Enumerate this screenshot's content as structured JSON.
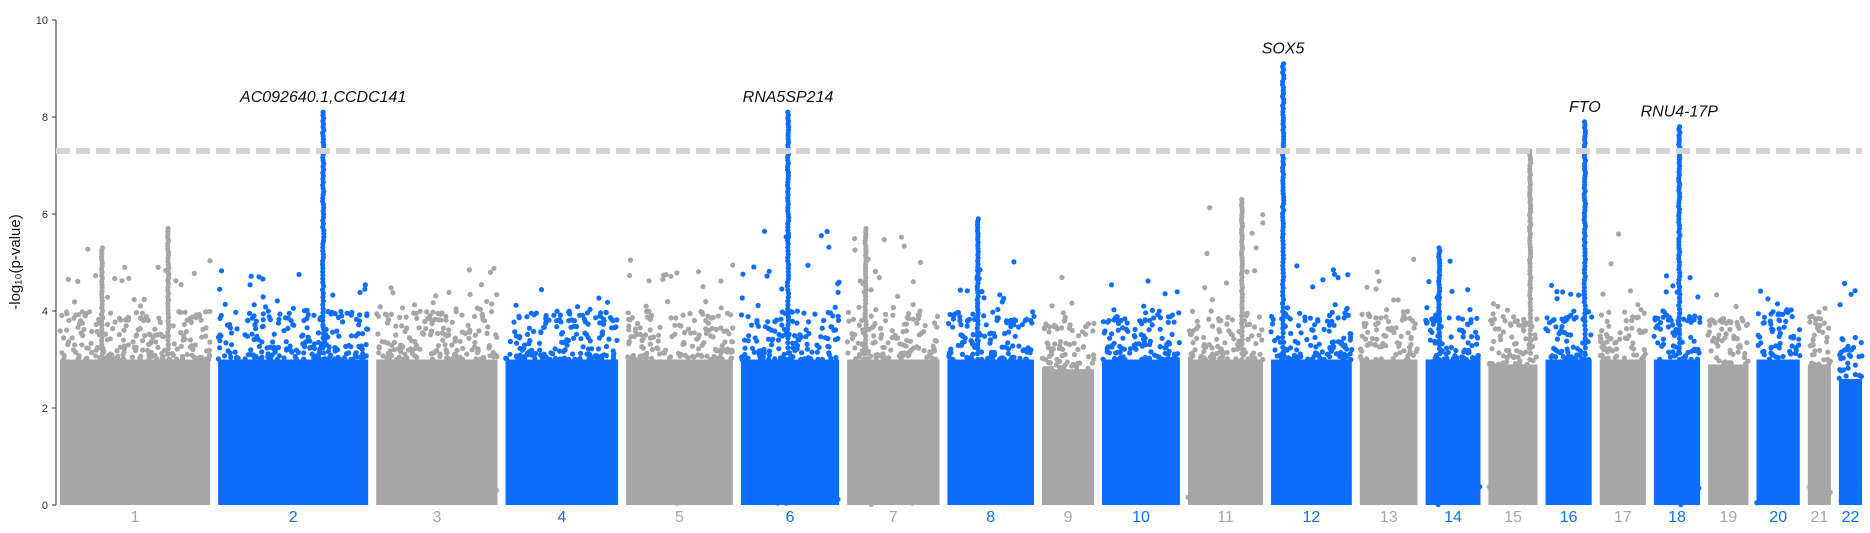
{
  "chart_data": {
    "type": "scatter",
    "ylabel": "-log₁₀(p-value)",
    "ylim": [
      0,
      10
    ],
    "yticks": [
      "0",
      "2",
      "4",
      "6",
      "8",
      "10"
    ],
    "significance_threshold": 7.3,
    "colors": {
      "odd": "#a6a6a6",
      "even": "#0d6efd",
      "threshold": "#d3d3d3"
    },
    "chromosomes": [
      {
        "label": "1",
        "size": 5.2,
        "base_top": 3.0,
        "max": 5.3
      },
      {
        "label": "2",
        "size": 5.2,
        "base_top": 3.0,
        "max": 4.9
      },
      {
        "label": "3",
        "size": 4.2,
        "base_top": 3.0,
        "max": 4.9
      },
      {
        "label": "4",
        "size": 3.9,
        "base_top": 3.0,
        "max": 4.6
      },
      {
        "label": "5",
        "size": 3.7,
        "base_top": 3.0,
        "max": 5.3
      },
      {
        "label": "6",
        "size": 3.4,
        "base_top": 3.0,
        "max": 5.9
      },
      {
        "label": "7",
        "size": 3.2,
        "base_top": 3.0,
        "max": 5.7
      },
      {
        "label": "8",
        "size": 3.0,
        "base_top": 3.0,
        "max": 5.1
      },
      {
        "label": "9",
        "size": 1.8,
        "base_top": 2.8,
        "max": 5.0
      },
      {
        "label": "10",
        "size": 2.7,
        "base_top": 3.0,
        "max": 4.8
      },
      {
        "label": "11",
        "size": 2.6,
        "base_top": 3.0,
        "max": 6.3
      },
      {
        "label": "12",
        "size": 2.8,
        "base_top": 3.0,
        "max": 5.0
      },
      {
        "label": "13",
        "size": 2.0,
        "base_top": 3.0,
        "max": 5.2
      },
      {
        "label": "14",
        "size": 1.9,
        "base_top": 3.0,
        "max": 5.2
      },
      {
        "label": "15",
        "size": 1.7,
        "base_top": 2.9,
        "max": 4.2
      },
      {
        "label": "16",
        "size": 1.6,
        "base_top": 3.0,
        "max": 4.6
      },
      {
        "label": "17",
        "size": 1.6,
        "base_top": 3.0,
        "max": 5.7
      },
      {
        "label": "18",
        "size": 1.6,
        "base_top": 3.0,
        "max": 4.8
      },
      {
        "label": "19",
        "size": 1.4,
        "base_top": 2.9,
        "max": 4.4
      },
      {
        "label": "20",
        "size": 1.5,
        "base_top": 3.0,
        "max": 4.6
      },
      {
        "label": "21",
        "size": 0.8,
        "base_top": 2.9,
        "max": 4.3
      },
      {
        "label": "22",
        "size": 0.8,
        "base_top": 2.6,
        "max": 4.9
      }
    ],
    "peaks": [
      {
        "chrom": "1",
        "pos": 0.28,
        "top": 5.3
      },
      {
        "chrom": "1",
        "pos": 0.72,
        "top": 5.7
      },
      {
        "chrom": "2",
        "pos": 0.7,
        "top": 8.1,
        "gene": "AC092640.1,CCDC141"
      },
      {
        "chrom": "6",
        "pos": 0.48,
        "top": 8.1,
        "gene": "RNA5SP214"
      },
      {
        "chrom": "7",
        "pos": 0.2,
        "top": 5.7
      },
      {
        "chrom": "8",
        "pos": 0.35,
        "top": 5.9
      },
      {
        "chrom": "11",
        "pos": 0.72,
        "top": 6.3
      },
      {
        "chrom": "12",
        "pos": 0.15,
        "top": 9.1,
        "gene": "SOX5"
      },
      {
        "chrom": "14",
        "pos": 0.25,
        "top": 5.3
      },
      {
        "chrom": "15",
        "pos": 0.85,
        "top": 7.3
      },
      {
        "chrom": "16",
        "pos": 0.85,
        "top": 7.9,
        "gene": "FTO"
      },
      {
        "chrom": "18",
        "pos": 0.55,
        "top": 7.8,
        "gene": "RNU4-17P"
      }
    ]
  }
}
